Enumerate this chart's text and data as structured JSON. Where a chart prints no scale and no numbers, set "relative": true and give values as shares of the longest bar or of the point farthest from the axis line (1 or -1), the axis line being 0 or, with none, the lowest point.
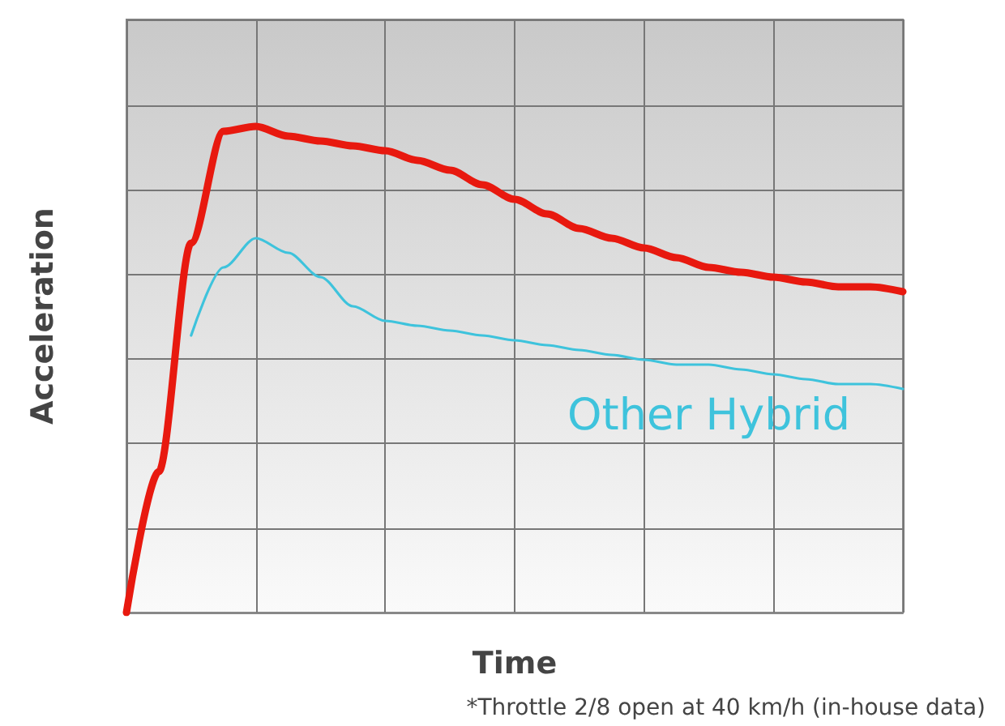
{
  "chart_data": {
    "type": "line",
    "relative": true,
    "xlabel": "Time",
    "ylabel": "Acceleration",
    "grid": true,
    "legend": false,
    "marker": "none",
    "line_style": "solid",
    "categories": [
      null,
      null,
      null,
      null,
      null,
      null,
      null,
      null,
      null,
      null,
      null,
      null,
      null,
      null,
      null,
      null,
      null,
      null,
      null,
      null,
      null,
      null,
      null,
      null,
      null
    ],
    "series": [
      {
        "color": "#e8190f",
        "values": [
          0,
          0.29,
          0.76,
          0.99,
          1,
          0.98,
          0.97,
          0.96,
          0.95,
          0.93,
          0.91,
          0.88,
          0.85,
          0.82,
          0.79,
          0.77,
          0.75,
          0.73,
          0.71,
          0.7,
          0.69,
          0.68,
          0.67,
          0.67,
          0.66
        ]
      },
      {
        "name": "Other Hybrid",
        "color": "#3ec3dc",
        "values": [
          null,
          null,
          0.57,
          0.71,
          0.77,
          0.74,
          0.69,
          0.63,
          0.6,
          0.59,
          0.58,
          0.57,
          0.56,
          0.55,
          0.54,
          0.53,
          0.52,
          0.51,
          0.51,
          0.5,
          0.49,
          0.48,
          0.47,
          0.47,
          0.46
        ]
      }
    ],
    "annotations": [
      "*Throttle 2/8 open at 40 km/h (in-house data)"
    ]
  }
}
